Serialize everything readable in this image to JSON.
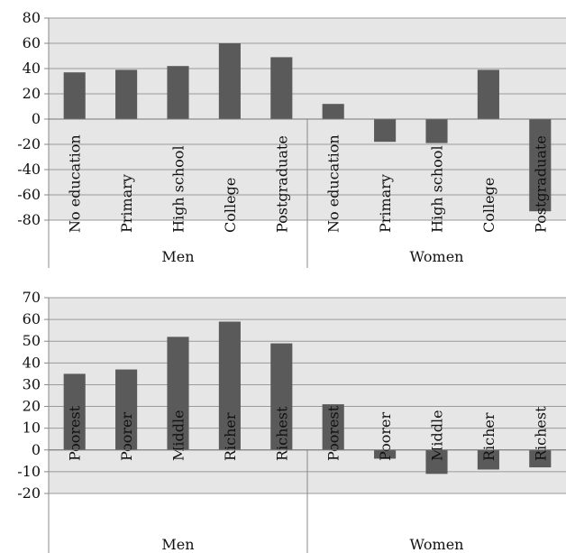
{
  "chart_data": [
    {
      "type": "bar",
      "title": "",
      "ylim": [
        -80,
        80
      ],
      "yticks": [
        80,
        60,
        40,
        20,
        0,
        -20,
        -40,
        -60,
        -80
      ],
      "grid": true,
      "groups": [
        {
          "label": "Men",
          "categories": [
            "No education",
            "Primary",
            "High school",
            "College",
            "Postgraduate"
          ],
          "values": [
            37,
            39,
            42,
            60,
            49
          ]
        },
        {
          "label": "Women",
          "categories": [
            "No education",
            "Primary",
            "High school",
            "College",
            "Postgraduate"
          ],
          "values": [
            12,
            -18,
            -19,
            39,
            -73
          ]
        }
      ],
      "colors": {
        "bar": "#5a5a5a",
        "plot_bg": "#e6e6e6",
        "grid": "#9a9a9a"
      }
    },
    {
      "type": "bar",
      "title": "",
      "ylim": [
        -20,
        70
      ],
      "yticks": [
        70,
        60,
        50,
        40,
        30,
        20,
        10,
        0,
        -10,
        -20
      ],
      "grid": true,
      "groups": [
        {
          "label": "Men",
          "categories": [
            "Poorest",
            "Poorer",
            "Middle",
            "Richer",
            "Richest"
          ],
          "values": [
            35,
            37,
            52,
            59,
            49
          ]
        },
        {
          "label": "Women",
          "categories": [
            "Poorest",
            "Poorer",
            "Middle",
            "Richer",
            "Richest"
          ],
          "values": [
            21,
            -4,
            -11,
            -9,
            -8
          ]
        }
      ],
      "colors": {
        "bar": "#5a5a5a",
        "plot_bg": "#e6e6e6",
        "grid": "#9a9a9a"
      }
    }
  ]
}
